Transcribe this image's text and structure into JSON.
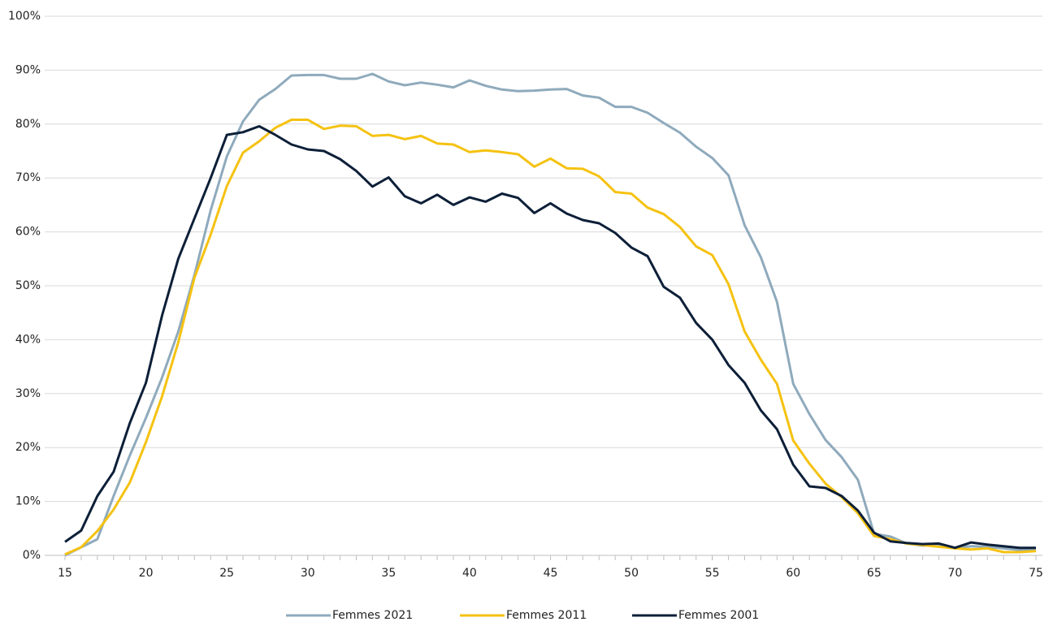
{
  "chart_data": {
    "type": "line",
    "x": [
      15,
      16,
      17,
      18,
      19,
      20,
      21,
      22,
      23,
      24,
      25,
      26,
      27,
      28,
      29,
      30,
      31,
      32,
      33,
      34,
      35,
      36,
      37,
      38,
      39,
      40,
      41,
      42,
      43,
      44,
      45,
      46,
      47,
      48,
      49,
      50,
      51,
      52,
      53,
      54,
      55,
      56,
      57,
      58,
      59,
      60,
      61,
      62,
      63,
      64,
      65,
      66,
      67,
      68,
      69,
      70,
      71,
      72,
      73,
      74,
      75
    ],
    "xlim": [
      15,
      75
    ],
    "xticks": [
      15,
      20,
      25,
      30,
      35,
      40,
      45,
      50,
      55,
      60,
      65,
      70,
      75
    ],
    "ylim": [
      0,
      100
    ],
    "yticks": [
      {
        "value": 0,
        "label": "0%"
      },
      {
        "value": 10,
        "label": "10%"
      },
      {
        "value": 20,
        "label": "20%"
      },
      {
        "value": 30,
        "label": "30%"
      },
      {
        "value": 40,
        "label": "40%"
      },
      {
        "value": 50,
        "label": "50%"
      },
      {
        "value": 60,
        "label": "60%"
      },
      {
        "value": 70,
        "label": "70%"
      },
      {
        "value": 80,
        "label": "80%"
      },
      {
        "value": 90,
        "label": "90%"
      },
      {
        "value": 100,
        "label": "100%"
      }
    ],
    "grid": true,
    "legend": "bottom",
    "series": [
      {
        "name": "Femmes 2021",
        "color": "#8faabc",
        "values": [
          0,
          1.5,
          3,
          11,
          18.5,
          25.5,
          33,
          41.5,
          52,
          64,
          74,
          80.5,
          84.5,
          86.5,
          89,
          89.1,
          89.1,
          88.4,
          88.4,
          89.3,
          87.9,
          87.2,
          87.7,
          87.3,
          86.8,
          88.1,
          87.1,
          86.4,
          86.1,
          86.2,
          86.4,
          86.5,
          85.3,
          84.9,
          83.2,
          83.2,
          82.1,
          80.2,
          78.4,
          75.8,
          73.7,
          70.5,
          61.2,
          55.3,
          47,
          31.8,
          26.2,
          21.4,
          18.2,
          14,
          4,
          3.5,
          2.2,
          1.8,
          1.9,
          1.4,
          1.7,
          1.6,
          1.3,
          1.0,
          1.1
        ]
      },
      {
        "name": "Femmes 2011",
        "color": "#f5c211",
        "values": [
          0.2,
          1.5,
          4.5,
          8.5,
          13.5,
          21,
          29.5,
          39.5,
          51.5,
          59.5,
          68.5,
          74.7,
          76.8,
          79.3,
          80.8,
          80.8,
          79.1,
          79.7,
          79.6,
          77.8,
          78,
          77.2,
          77.8,
          76.4,
          76.2,
          74.8,
          75.1,
          74.8,
          74.4,
          72.1,
          73.6,
          71.8,
          71.7,
          70.3,
          67.4,
          67.1,
          64.5,
          63.3,
          60.9,
          57.3,
          55.7,
          50.3,
          41.5,
          36.3,
          31.8,
          21.3,
          17,
          13.3,
          10.8,
          7.8,
          3.6,
          3.0,
          2.2,
          1.9,
          1.6,
          1.3,
          1.1,
          1.3,
          0.6,
          0.6,
          0.8
        ]
      },
      {
        "name": "Femmes 2001",
        "color": "#0d1f38",
        "values": [
          2.5,
          4.6,
          11,
          15.5,
          24.5,
          32,
          44.5,
          55,
          62.5,
          70,
          78,
          78.5,
          79.6,
          78,
          76.2,
          75.3,
          75,
          73.5,
          71.3,
          68.4,
          70.1,
          66.6,
          65.3,
          66.9,
          65,
          66.4,
          65.6,
          67.1,
          66.3,
          63.5,
          65.3,
          63.4,
          62.2,
          61.6,
          59.8,
          57.1,
          55.5,
          49.8,
          47.8,
          43.1,
          40,
          35.3,
          32,
          26.9,
          23.4,
          16.8,
          12.8,
          12.5,
          11,
          8.3,
          4.2,
          2.6,
          2.3,
          2.1,
          2.2,
          1.4,
          2.4,
          2.0,
          1.7,
          1.4,
          1.4
        ]
      }
    ]
  }
}
